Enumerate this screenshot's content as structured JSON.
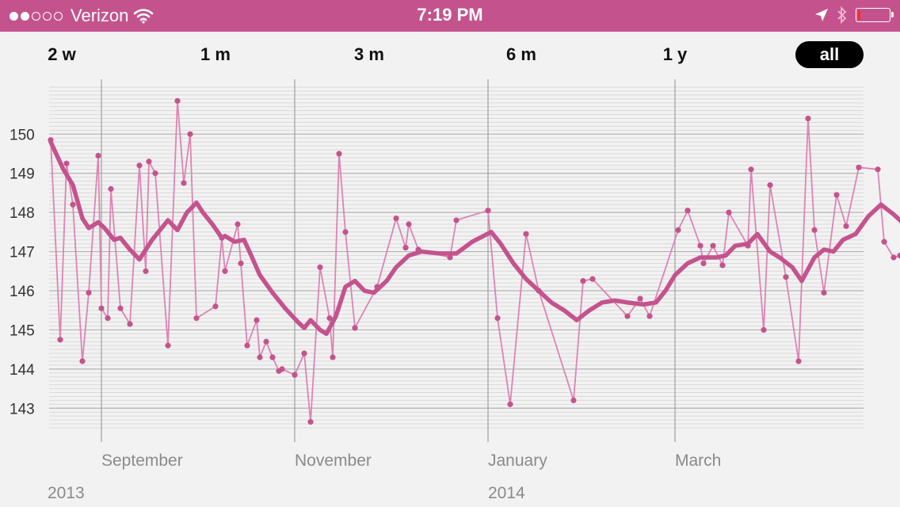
{
  "status": {
    "carrier": "Verizon",
    "time": "7:19 PM",
    "signal_bars_filled": 2,
    "signal_bars_total": 5,
    "icons": [
      "wifi-icon",
      "location-arrow-icon",
      "bluetooth-icon",
      "battery-icon"
    ],
    "battery_level": 0.05
  },
  "tabs": [
    {
      "label": "2 w",
      "active": false
    },
    {
      "label": "1 m",
      "active": false
    },
    {
      "label": "3 m",
      "active": false
    },
    {
      "label": "6 m",
      "active": false
    },
    {
      "label": "1 y",
      "active": false
    },
    {
      "label": "all",
      "active": true
    }
  ],
  "colors": {
    "accent": "#c4538d",
    "raw_line": "#dd84b4",
    "trend_line": "#c4538d",
    "background": "#f2f2f2"
  },
  "chart_data": {
    "type": "line",
    "title": "",
    "xlabel": "",
    "ylabel": "",
    "ylim": [
      142.5,
      151.2
    ],
    "xlim": [
      "2013-08-13",
      "2014-05-01"
    ],
    "yticks": [
      143,
      144,
      145,
      146,
      147,
      148,
      149,
      150
    ],
    "month_ticks": [
      {
        "label": "September",
        "date": "2013-09-01"
      },
      {
        "label": "November",
        "date": "2013-11-01"
      },
      {
        "label": "January",
        "date": "2014-01-01"
      },
      {
        "label": "March",
        "date": "2014-03-01"
      }
    ],
    "year_labels": [
      {
        "label": "2013",
        "date": "2013-08-13"
      },
      {
        "label": "2014",
        "date": "2014-01-01"
      }
    ],
    "grid": true,
    "series": [
      {
        "role": "raw",
        "style": "thin line with dot markers",
        "points": [
          [
            "2013-08-16",
            149.85
          ],
          [
            "2013-08-19",
            144.75
          ],
          [
            "2013-08-21",
            149.25
          ],
          [
            "2013-08-23",
            148.2
          ],
          [
            "2013-08-26",
            144.2
          ],
          [
            "2013-08-28",
            145.95
          ],
          [
            "2013-08-31",
            149.45
          ],
          [
            "2013-09-01",
            145.55
          ],
          [
            "2013-09-03",
            145.3
          ],
          [
            "2013-09-04",
            148.6
          ],
          [
            "2013-09-07",
            145.55
          ],
          [
            "2013-09-10",
            145.15
          ],
          [
            "2013-09-13",
            149.2
          ],
          [
            "2013-09-15",
            146.5
          ],
          [
            "2013-09-16",
            149.3
          ],
          [
            "2013-09-18",
            149.0
          ],
          [
            "2013-09-22",
            144.6
          ],
          [
            "2013-09-25",
            150.85
          ],
          [
            "2013-09-27",
            148.75
          ],
          [
            "2013-09-29",
            150.0
          ],
          [
            "2013-10-01",
            145.3
          ],
          [
            "2013-10-07",
            145.6
          ],
          [
            "2013-10-09",
            147.35
          ],
          [
            "2013-10-10",
            146.5
          ],
          [
            "2013-10-14",
            147.7
          ],
          [
            "2013-10-15",
            146.7
          ],
          [
            "2013-10-17",
            144.6
          ],
          [
            "2013-10-20",
            145.25
          ],
          [
            "2013-10-21",
            144.3
          ],
          [
            "2013-10-23",
            144.7
          ],
          [
            "2013-10-25",
            144.3
          ],
          [
            "2013-10-27",
            143.95
          ],
          [
            "2013-10-28",
            144.0
          ],
          [
            "2013-11-01",
            143.85
          ],
          [
            "2013-11-04",
            144.4
          ],
          [
            "2013-11-06",
            142.65
          ],
          [
            "2013-11-09",
            146.6
          ],
          [
            "2013-11-12",
            145.3
          ],
          [
            "2013-11-13",
            144.3
          ],
          [
            "2013-11-15",
            149.5
          ],
          [
            "2013-11-17",
            147.5
          ],
          [
            "2013-11-20",
            145.05
          ],
          [
            "2013-11-27",
            146.1
          ],
          [
            "2013-12-03",
            147.85
          ],
          [
            "2013-12-06",
            147.1
          ],
          [
            "2013-12-07",
            147.7
          ],
          [
            "2013-12-10",
            147.05
          ],
          [
            "2013-12-20",
            146.85
          ],
          [
            "2013-12-22",
            147.8
          ],
          [
            "2014-01-01",
            148.05
          ],
          [
            "2014-01-04",
            145.3
          ],
          [
            "2014-01-08",
            143.1
          ],
          [
            "2014-01-13",
            147.45
          ],
          [
            "2014-01-17",
            146.0
          ],
          [
            "2014-01-28",
            143.2
          ],
          [
            "2014-01-31",
            146.25
          ],
          [
            "2014-02-03",
            146.3
          ],
          [
            "2014-02-14",
            145.35
          ],
          [
            "2014-02-18",
            145.8
          ],
          [
            "2014-02-21",
            145.35
          ],
          [
            "2014-03-02",
            147.55
          ],
          [
            "2014-03-05",
            148.05
          ],
          [
            "2014-03-09",
            147.15
          ],
          [
            "2014-03-10",
            146.7
          ],
          [
            "2014-03-13",
            147.15
          ],
          [
            "2014-03-16",
            146.65
          ],
          [
            "2014-03-18",
            148.0
          ],
          [
            "2014-03-24",
            147.15
          ],
          [
            "2014-03-25",
            149.1
          ],
          [
            "2014-03-29",
            145.0
          ],
          [
            "2014-03-31",
            148.7
          ],
          [
            "2014-04-05",
            146.35
          ],
          [
            "2014-04-09",
            144.2
          ],
          [
            "2014-04-12",
            150.4
          ],
          [
            "2014-04-14",
            147.55
          ],
          [
            "2014-04-17",
            145.95
          ],
          [
            "2014-04-21",
            148.45
          ],
          [
            "2014-04-24",
            147.65
          ],
          [
            "2014-04-28",
            149.15
          ],
          [
            "2014-05-04",
            149.1
          ],
          [
            "2014-05-06",
            147.25
          ],
          [
            "2014-05-09",
            146.85
          ],
          [
            "2014-05-11",
            146.9
          ]
        ]
      },
      {
        "role": "trend",
        "style": "thick smooth line",
        "points": [
          [
            "2013-08-16",
            149.8
          ],
          [
            "2013-08-20",
            149.1
          ],
          [
            "2013-08-23",
            148.7
          ],
          [
            "2013-08-26",
            147.85
          ],
          [
            "2013-08-28",
            147.6
          ],
          [
            "2013-08-31",
            147.75
          ],
          [
            "2013-09-02",
            147.6
          ],
          [
            "2013-09-05",
            147.3
          ],
          [
            "2013-09-07",
            147.35
          ],
          [
            "2013-09-10",
            147.05
          ],
          [
            "2013-09-13",
            146.8
          ],
          [
            "2013-09-17",
            147.3
          ],
          [
            "2013-09-20",
            147.6
          ],
          [
            "2013-09-22",
            147.8
          ],
          [
            "2013-09-25",
            147.55
          ],
          [
            "2013-09-28",
            148.0
          ],
          [
            "2013-10-01",
            148.25
          ],
          [
            "2013-10-03",
            148.0
          ],
          [
            "2013-10-06",
            147.7
          ],
          [
            "2013-10-09",
            147.35
          ],
          [
            "2013-10-10",
            147.4
          ],
          [
            "2013-10-13",
            147.25
          ],
          [
            "2013-10-16",
            147.3
          ],
          [
            "2013-10-18",
            146.95
          ],
          [
            "2013-10-21",
            146.4
          ],
          [
            "2013-10-25",
            145.95
          ],
          [
            "2013-10-29",
            145.55
          ],
          [
            "2013-11-02",
            145.2
          ],
          [
            "2013-11-04",
            145.05
          ],
          [
            "2013-11-06",
            145.25
          ],
          [
            "2013-11-09",
            145.0
          ],
          [
            "2013-11-11",
            144.9
          ],
          [
            "2013-11-14",
            145.35
          ],
          [
            "2013-11-17",
            146.1
          ],
          [
            "2013-11-20",
            146.25
          ],
          [
            "2013-11-23",
            146.0
          ],
          [
            "2013-11-26",
            145.95
          ],
          [
            "2013-11-30",
            146.25
          ],
          [
            "2013-12-03",
            146.6
          ],
          [
            "2013-12-07",
            146.9
          ],
          [
            "2013-12-11",
            147.0
          ],
          [
            "2013-12-17",
            146.95
          ],
          [
            "2013-12-22",
            146.95
          ],
          [
            "2013-12-27",
            147.25
          ],
          [
            "2014-01-02",
            147.5
          ],
          [
            "2014-01-05",
            147.2
          ],
          [
            "2014-01-09",
            146.7
          ],
          [
            "2014-01-13",
            146.3
          ],
          [
            "2014-01-17",
            146.0
          ],
          [
            "2014-01-21",
            145.7
          ],
          [
            "2014-01-25",
            145.5
          ],
          [
            "2014-01-29",
            145.25
          ],
          [
            "2014-02-02",
            145.5
          ],
          [
            "2014-02-06",
            145.7
          ],
          [
            "2014-02-10",
            145.75
          ],
          [
            "2014-02-14",
            145.7
          ],
          [
            "2014-02-19",
            145.65
          ],
          [
            "2014-02-23",
            145.7
          ],
          [
            "2014-02-26",
            146.0
          ],
          [
            "2014-03-01",
            146.4
          ],
          [
            "2014-03-05",
            146.7
          ],
          [
            "2014-03-09",
            146.85
          ],
          [
            "2014-03-14",
            146.85
          ],
          [
            "2014-03-17",
            146.9
          ],
          [
            "2014-03-20",
            147.15
          ],
          [
            "2014-03-24",
            147.2
          ],
          [
            "2014-03-27",
            147.45
          ],
          [
            "2014-03-31",
            147.0
          ],
          [
            "2014-04-03",
            146.85
          ],
          [
            "2014-04-07",
            146.6
          ],
          [
            "2014-04-10",
            146.25
          ],
          [
            "2014-04-14",
            146.85
          ],
          [
            "2014-04-17",
            147.05
          ],
          [
            "2014-04-20",
            147.0
          ],
          [
            "2014-04-23",
            147.3
          ],
          [
            "2014-04-27",
            147.45
          ],
          [
            "2014-05-01",
            147.9
          ],
          [
            "2014-05-05",
            148.2
          ],
          [
            "2014-05-09",
            147.95
          ],
          [
            "2014-05-13",
            147.65
          ]
        ]
      }
    ]
  }
}
